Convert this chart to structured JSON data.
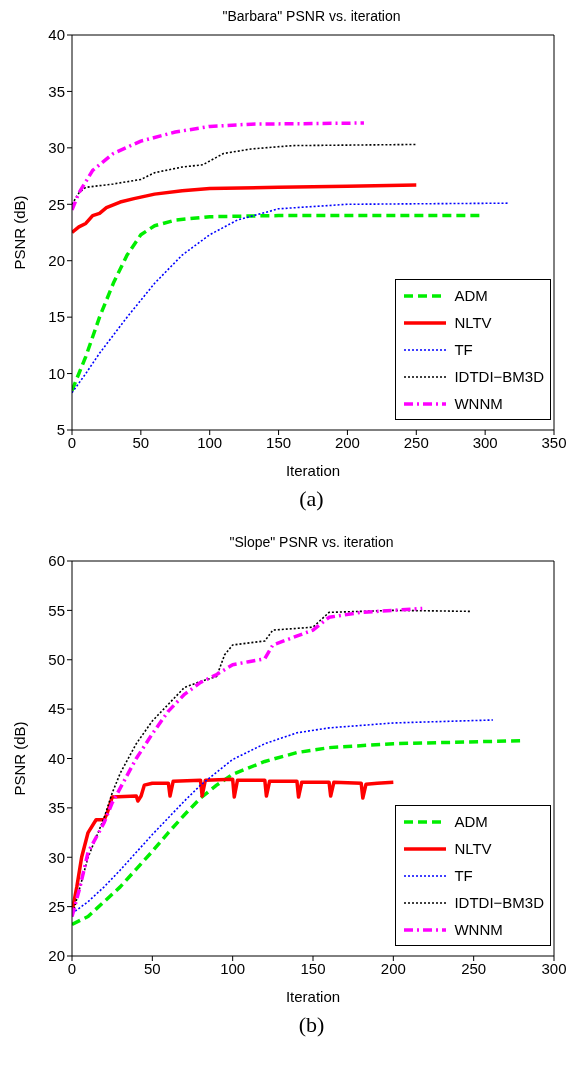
{
  "chart_data": [
    {
      "type": "line",
      "title": "\"Barbara\" PSNR vs. iteration",
      "xlabel": "Iteration",
      "ylabel": "PSNR (dB)",
      "annotations": [
        "(a)"
      ],
      "xlim": [
        0,
        350
      ],
      "xticks": [
        0,
        50,
        100,
        150,
        200,
        250,
        300,
        350
      ],
      "ylim": [
        5,
        40
      ],
      "yticks": [
        5,
        10,
        15,
        20,
        25,
        30,
        35,
        40
      ],
      "grid": false,
      "legend": "bottom right",
      "series": [
        {
          "name": "ADM",
          "color": "#00ee00",
          "line_style": "dashed",
          "x": [
            0,
            10,
            20,
            30,
            40,
            50,
            60,
            75,
            100,
            150,
            298
          ],
          "values": [
            8.5,
            11.5,
            15,
            18,
            20.5,
            22.3,
            23.1,
            23.6,
            23.9,
            24,
            24
          ]
        },
        {
          "name": "NLTV",
          "color": "#ff0000",
          "line_style": "solid",
          "x": [
            0,
            5,
            10,
            15,
            20,
            25,
            35,
            45,
            60,
            80,
            100,
            150,
            200,
            250
          ],
          "values": [
            22.5,
            23,
            23.3,
            24,
            24.2,
            24.7,
            25.2,
            25.5,
            25.9,
            26.2,
            26.4,
            26.5,
            26.6,
            26.7
          ]
        },
        {
          "name": "TF",
          "color": "#0000ff",
          "line_style": "dotted",
          "x": [
            0,
            10,
            20,
            40,
            60,
            80,
            100,
            120,
            150,
            200,
            317
          ],
          "values": [
            8.3,
            10,
            11.8,
            15,
            18,
            20.5,
            22.3,
            23.6,
            24.6,
            25,
            25.1
          ]
        },
        {
          "name": "IDTDI−BM3D",
          "color": "#000000",
          "line_style": "dotted",
          "x": [
            0,
            5,
            10,
            30,
            50,
            60,
            80,
            95,
            110,
            130,
            160,
            250
          ],
          "values": [
            25,
            26,
            26.5,
            26.8,
            27.2,
            27.8,
            28.3,
            28.5,
            29.5,
            29.9,
            30.2,
            30.3
          ]
        },
        {
          "name": "WNNM",
          "color": "#ff00ff",
          "line_style": "dashdot",
          "x": [
            0,
            5,
            15,
            30,
            50,
            75,
            100,
            130,
            212
          ],
          "values": [
            24.5,
            26,
            28,
            29.5,
            30.6,
            31.4,
            31.9,
            32.1,
            32.2
          ]
        }
      ]
    },
    {
      "type": "line",
      "title": "\"Slope\" PSNR vs. iteration",
      "xlabel": "Iteration",
      "ylabel": "PSNR (dB)",
      "annotations": [
        "(b)"
      ],
      "xlim": [
        0,
        300
      ],
      "xticks": [
        0,
        50,
        100,
        150,
        200,
        250,
        300
      ],
      "ylim": [
        20,
        60
      ],
      "yticks": [
        20,
        25,
        30,
        35,
        40,
        45,
        50,
        55,
        60
      ],
      "grid": false,
      "legend": "bottom right",
      "series": [
        {
          "name": "ADM",
          "color": "#00ee00",
          "line_style": "dashed",
          "x": [
            0,
            10,
            20,
            30,
            40,
            50,
            60,
            70,
            80,
            90,
            100,
            120,
            140,
            160,
            200,
            280
          ],
          "values": [
            23.2,
            24,
            25.5,
            27,
            28.8,
            30.6,
            32.5,
            34.3,
            36,
            37.3,
            38.4,
            39.7,
            40.6,
            41.1,
            41.5,
            41.8
          ]
        },
        {
          "name": "NLTV",
          "color": "#ff0000",
          "line_style": "solid",
          "x": [
            0,
            3,
            6,
            10,
            15,
            20,
            22,
            25,
            40,
            41,
            43,
            45,
            50,
            60,
            61,
            63,
            80,
            81,
            83,
            100,
            101,
            103,
            120,
            121,
            123,
            140,
            141,
            143,
            160,
            161,
            163,
            180,
            181,
            183,
            190,
            200
          ],
          "values": [
            24.5,
            27,
            30,
            32.5,
            33.8,
            33.8,
            34.5,
            36.1,
            36.2,
            35.7,
            36.2,
            37.3,
            37.5,
            37.5,
            36.2,
            37.7,
            37.8,
            36.2,
            37.8,
            37.9,
            36.1,
            37.8,
            37.8,
            36.2,
            37.7,
            37.7,
            36.1,
            37.6,
            37.6,
            36.2,
            37.6,
            37.5,
            36,
            37.4,
            37.5,
            37.6
          ]
        },
        {
          "name": "TF",
          "color": "#0000ff",
          "line_style": "dotted",
          "x": [
            0,
            10,
            20,
            30,
            40,
            50,
            60,
            70,
            80,
            90,
            100,
            120,
            140,
            160,
            200,
            262
          ],
          "values": [
            24.3,
            25.5,
            27,
            28.7,
            30.5,
            32.3,
            34,
            35.7,
            37.3,
            38.6,
            39.9,
            41.5,
            42.6,
            43.1,
            43.6,
            43.9
          ]
        },
        {
          "name": "IDTDI−BM3D",
          "color": "#000000",
          "line_style": "dotted",
          "x": [
            0,
            5,
            10,
            20,
            25,
            30,
            40,
            50,
            60,
            70,
            80,
            90,
            95,
            100,
            120,
            125,
            150,
            160,
            200,
            248
          ],
          "values": [
            24,
            27,
            30,
            34,
            36.5,
            38.5,
            41.5,
            43.8,
            45.5,
            47.2,
            47.8,
            48.3,
            50.5,
            51.5,
            51.9,
            53,
            53.3,
            54.8,
            55,
            54.9
          ]
        },
        {
          "name": "WNNM",
          "color": "#ff00ff",
          "line_style": "dashdot",
          "x": [
            0,
            5,
            10,
            20,
            25,
            30,
            40,
            50,
            60,
            70,
            80,
            90,
            100,
            110,
            120,
            125,
            150,
            160,
            180,
            200,
            218
          ],
          "values": [
            24,
            27,
            30.5,
            33.5,
            35.5,
            37,
            40,
            42.5,
            44.8,
            46.5,
            47.7,
            48.5,
            49.5,
            49.8,
            50.1,
            51.5,
            53,
            54.3,
            54.8,
            55,
            55.2
          ]
        }
      ]
    }
  ]
}
